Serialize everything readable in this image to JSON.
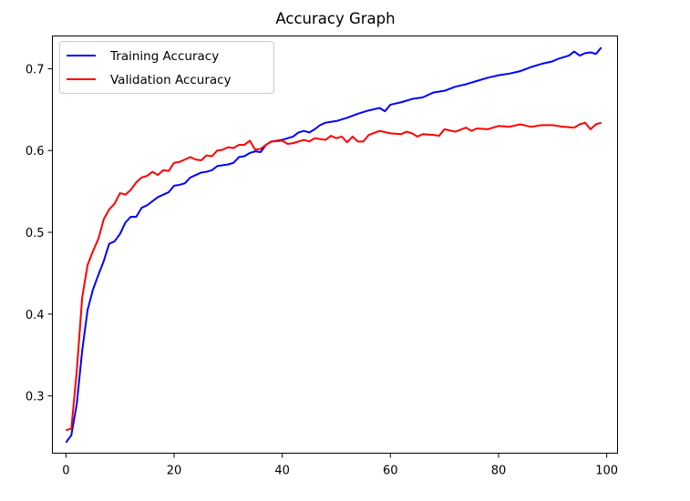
{
  "chart_data": {
    "type": "line",
    "title": "Accuracy Graph",
    "xlabel": "",
    "ylabel": "",
    "xlim": [
      -2.5,
      102
    ],
    "ylim": [
      0.23,
      0.74
    ],
    "xticks": [
      0,
      20,
      40,
      60,
      80,
      100
    ],
    "yticks": [
      0.3,
      0.4,
      0.5,
      0.6,
      0.7
    ],
    "grid": false,
    "legend_position": "upper-left",
    "series": [
      {
        "name": "Training Accuracy",
        "color": "#0000ff",
        "keypoints": [
          [
            0,
            0.243
          ],
          [
            1,
            0.252
          ],
          [
            2,
            0.29
          ],
          [
            3,
            0.355
          ],
          [
            4,
            0.405
          ],
          [
            5,
            0.43
          ],
          [
            6,
            0.448
          ],
          [
            7,
            0.465
          ],
          [
            8,
            0.486
          ],
          [
            9,
            0.489
          ],
          [
            10,
            0.498
          ],
          [
            11,
            0.512
          ],
          [
            12,
            0.519
          ],
          [
            13,
            0.519
          ],
          [
            14,
            0.53
          ],
          [
            15,
            0.533
          ],
          [
            16,
            0.538
          ],
          [
            17,
            0.543
          ],
          [
            18,
            0.546
          ],
          [
            19,
            0.549
          ],
          [
            20,
            0.557
          ],
          [
            21,
            0.558
          ],
          [
            22,
            0.56
          ],
          [
            23,
            0.567
          ],
          [
            24,
            0.57
          ],
          [
            25,
            0.573
          ],
          [
            26,
            0.574
          ],
          [
            27,
            0.576
          ],
          [
            28,
            0.581
          ],
          [
            29,
            0.582
          ],
          [
            30,
            0.583
          ],
          [
            31,
            0.585
          ],
          [
            32,
            0.592
          ],
          [
            33,
            0.593
          ],
          [
            34,
            0.597
          ],
          [
            35,
            0.599
          ],
          [
            36,
            0.598
          ],
          [
            37,
            0.607
          ],
          [
            38,
            0.611
          ],
          [
            39,
            0.612
          ],
          [
            40,
            0.613
          ],
          [
            42,
            0.617
          ],
          [
            43,
            0.622
          ],
          [
            44,
            0.624
          ],
          [
            45,
            0.622
          ],
          [
            46,
            0.626
          ],
          [
            47,
            0.631
          ],
          [
            48,
            0.634
          ],
          [
            49,
            0.635
          ],
          [
            50,
            0.636
          ],
          [
            52,
            0.64
          ],
          [
            54,
            0.645
          ],
          [
            56,
            0.649
          ],
          [
            58,
            0.652
          ],
          [
            59,
            0.648
          ],
          [
            60,
            0.656
          ],
          [
            62,
            0.659
          ],
          [
            64,
            0.663
          ],
          [
            66,
            0.665
          ],
          [
            68,
            0.671
          ],
          [
            70,
            0.673
          ],
          [
            72,
            0.678
          ],
          [
            74,
            0.681
          ],
          [
            76,
            0.685
          ],
          [
            78,
            0.689
          ],
          [
            80,
            0.692
          ],
          [
            82,
            0.694
          ],
          [
            84,
            0.697
          ],
          [
            86,
            0.702
          ],
          [
            88,
            0.706
          ],
          [
            90,
            0.709
          ],
          [
            91,
            0.712
          ],
          [
            92,
            0.714
          ],
          [
            93,
            0.716
          ],
          [
            94,
            0.721
          ],
          [
            95,
            0.716
          ],
          [
            96,
            0.719
          ],
          [
            97,
            0.72
          ],
          [
            98,
            0.718
          ],
          [
            99,
            0.726
          ]
        ]
      },
      {
        "name": "Validation Accuracy",
        "color": "#ff0000",
        "keypoints": [
          [
            0,
            0.258
          ],
          [
            1,
            0.26
          ],
          [
            2,
            0.33
          ],
          [
            3,
            0.42
          ],
          [
            4,
            0.46
          ],
          [
            5,
            0.477
          ],
          [
            6,
            0.492
          ],
          [
            7,
            0.516
          ],
          [
            8,
            0.528
          ],
          [
            9,
            0.535
          ],
          [
            10,
            0.548
          ],
          [
            11,
            0.546
          ],
          [
            12,
            0.552
          ],
          [
            13,
            0.561
          ],
          [
            14,
            0.567
          ],
          [
            15,
            0.569
          ],
          [
            16,
            0.574
          ],
          [
            17,
            0.57
          ],
          [
            18,
            0.576
          ],
          [
            19,
            0.575
          ],
          [
            20,
            0.585
          ],
          [
            21,
            0.586
          ],
          [
            22,
            0.589
          ],
          [
            23,
            0.592
          ],
          [
            24,
            0.589
          ],
          [
            25,
            0.588
          ],
          [
            26,
            0.594
          ],
          [
            27,
            0.593
          ],
          [
            28,
            0.6
          ],
          [
            29,
            0.601
          ],
          [
            30,
            0.604
          ],
          [
            31,
            0.603
          ],
          [
            32,
            0.607
          ],
          [
            33,
            0.607
          ],
          [
            34,
            0.612
          ],
          [
            35,
            0.601
          ],
          [
            36,
            0.602
          ],
          [
            37,
            0.607
          ],
          [
            38,
            0.611
          ],
          [
            40,
            0.612
          ],
          [
            41,
            0.608
          ],
          [
            42,
            0.609
          ],
          [
            44,
            0.613
          ],
          [
            45,
            0.611
          ],
          [
            46,
            0.615
          ],
          [
            48,
            0.613
          ],
          [
            49,
            0.618
          ],
          [
            50,
            0.615
          ],
          [
            51,
            0.617
          ],
          [
            52,
            0.61
          ],
          [
            53,
            0.617
          ],
          [
            54,
            0.611
          ],
          [
            55,
            0.611
          ],
          [
            56,
            0.619
          ],
          [
            58,
            0.624
          ],
          [
            60,
            0.621
          ],
          [
            62,
            0.62
          ],
          [
            63,
            0.623
          ],
          [
            64,
            0.621
          ],
          [
            65,
            0.617
          ],
          [
            66,
            0.62
          ],
          [
            68,
            0.619
          ],
          [
            69,
            0.618
          ],
          [
            70,
            0.626
          ],
          [
            72,
            0.623
          ],
          [
            74,
            0.628
          ],
          [
            75,
            0.624
          ],
          [
            76,
            0.627
          ],
          [
            78,
            0.626
          ],
          [
            80,
            0.63
          ],
          [
            82,
            0.629
          ],
          [
            84,
            0.632
          ],
          [
            86,
            0.629
          ],
          [
            88,
            0.631
          ],
          [
            90,
            0.631
          ],
          [
            92,
            0.629
          ],
          [
            94,
            0.628
          ],
          [
            95,
            0.632
          ],
          [
            96,
            0.634
          ],
          [
            97,
            0.626
          ],
          [
            98,
            0.632
          ],
          [
            99,
            0.634
          ]
        ]
      }
    ]
  }
}
